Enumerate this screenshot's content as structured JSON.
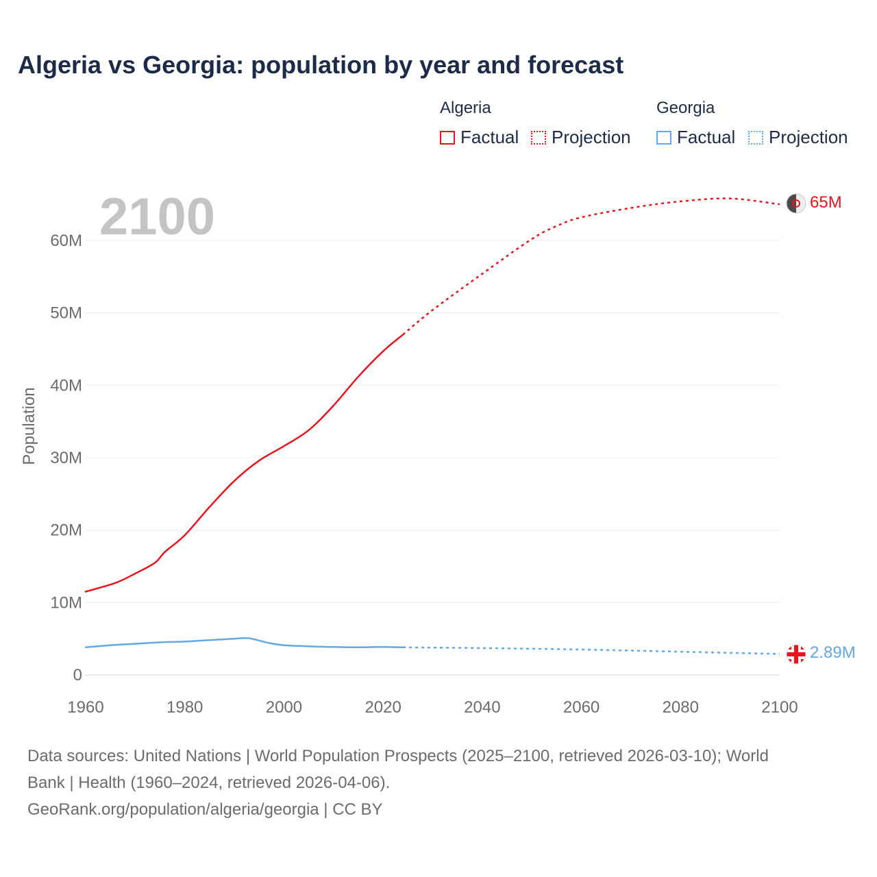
{
  "title": "Algeria vs Georgia: population by year and forecast",
  "legend": {
    "groups": [
      {
        "name": "Algeria",
        "color": "#e8141c",
        "factual_label": "Factual",
        "projection_label": "Projection"
      },
      {
        "name": "Georgia",
        "color": "#62a7e6",
        "factual_label": "Factual",
        "projection_label": "Projection"
      }
    ]
  },
  "year_display": "2100",
  "chart_data": {
    "type": "line",
    "title": "Algeria vs Georgia: population by year and forecast",
    "xlabel": "",
    "ylabel": "Population",
    "xlim": [
      1960,
      2100
    ],
    "ylim": [
      0,
      65000000
    ],
    "x_ticks": [
      1960,
      1980,
      2000,
      2020,
      2040,
      2060,
      2080,
      2100
    ],
    "x_tick_labels": [
      "1960",
      "1980",
      "2000",
      "2020",
      "2040",
      "2060",
      "2080",
      "2100"
    ],
    "y_ticks": [
      0,
      10000000,
      20000000,
      30000000,
      40000000,
      50000000,
      60000000
    ],
    "y_tick_labels": [
      "0",
      "10M",
      "20M",
      "30M",
      "40M",
      "50M",
      "60M"
    ],
    "grid": true,
    "series": [
      {
        "name": "Algeria",
        "color": "#e8141c",
        "end_label": "65M",
        "factual": {
          "x": [
            1960,
            1966,
            1970,
            1974,
            1976,
            1980,
            1985,
            1990,
            1995,
            2000,
            2005,
            2010,
            2015,
            2020,
            2024
          ],
          "y": [
            11500000,
            12700000,
            14000000,
            15500000,
            17000000,
            19300000,
            23200000,
            26800000,
            29600000,
            31600000,
            33800000,
            37200000,
            41200000,
            44700000,
            47000000
          ]
        },
        "projection": {
          "x": [
            2024,
            2030,
            2040,
            2050,
            2055,
            2060,
            2070,
            2080,
            2090,
            2100
          ],
          "y": [
            47000000,
            50400000,
            55400000,
            60200000,
            62000000,
            63200000,
            64500000,
            65400000,
            65800000,
            65000000
          ]
        }
      },
      {
        "name": "Georgia",
        "color": "#62a7e6",
        "end_label": "2.89M",
        "factual": {
          "x": [
            1960,
            1965,
            1970,
            1975,
            1980,
            1985,
            1990,
            1993,
            1997,
            2000,
            2005,
            2010,
            2015,
            2020,
            2024
          ],
          "y": [
            3800000,
            4100000,
            4300000,
            4500000,
            4600000,
            4800000,
            5000000,
            5050000,
            4400000,
            4100000,
            3950000,
            3850000,
            3800000,
            3850000,
            3800000
          ]
        },
        "projection": {
          "x": [
            2024,
            2040,
            2060,
            2080,
            2100
          ],
          "y": [
            3800000,
            3700000,
            3500000,
            3200000,
            2890000
          ]
        }
      }
    ]
  },
  "footer": {
    "line1": "Data sources: United Nations | World Population Prospects (2025–2100, retrieved 2026-03-10); World",
    "line2": "Bank | Health (1960–2024, retrieved 2026-04-06).",
    "line3": "GeoRank.org/population/algeria/georgia | CC BY"
  }
}
